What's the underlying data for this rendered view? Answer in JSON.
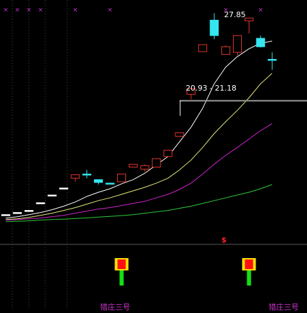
{
  "colors": {
    "background": "#000000",
    "up_candle": "#e0362e",
    "down_candle": "#35e5f0",
    "doji": "#ffffff",
    "ma_white": "#ffffff",
    "ma_yellow": "#e8e87a",
    "ma_magenta": "#d024d0",
    "ma_green": "#2ecc3a",
    "grid": "#4a4a4a",
    "marker_x": "#cc33cc",
    "signal_label": "#cc33cc",
    "signal_red": "#ff1010",
    "signal_yellow": "#ffe100",
    "signal_green": "#12e012"
  },
  "annotations": {
    "high_label": "27.85",
    "range_label": "20.93 - 21.18",
    "dollar_mark": "$"
  },
  "signals": {
    "label_1": "猎庄三号",
    "label_2": "猎庄三号"
  },
  "chart_data": {
    "type": "candlestick",
    "candles": [
      {
        "open": 13.45,
        "close": 13.45,
        "high": 13.45,
        "low": 13.45
      },
      {
        "open": 13.6,
        "close": 13.6,
        "high": 13.6,
        "low": 13.6
      },
      {
        "open": 13.75,
        "close": 13.75,
        "high": 13.75,
        "low": 13.75
      },
      {
        "open": 14.3,
        "close": 14.3,
        "high": 14.3,
        "low": 14.3
      },
      {
        "open": 14.85,
        "close": 14.85,
        "high": 14.85,
        "low": 14.85
      },
      {
        "open": 15.35,
        "close": 15.35,
        "high": 15.35,
        "low": 15.35
      },
      {
        "open": 16.05,
        "close": 16.3,
        "high": 16.3,
        "low": 15.8
      },
      {
        "open": 16.35,
        "close": 16.35,
        "high": 16.65,
        "low": 16.05
      },
      {
        "open": 15.95,
        "close": 15.75,
        "high": 15.95,
        "low": 15.6
      },
      {
        "open": 15.7,
        "close": 15.7,
        "high": 15.7,
        "low": 15.7
      },
      {
        "open": 15.8,
        "close": 16.35,
        "high": 16.35,
        "low": 15.8
      },
      {
        "open": 16.85,
        "close": 17.05,
        "high": 17.05,
        "low": 16.85
      },
      {
        "open": 16.7,
        "close": 16.95,
        "high": 17.05,
        "low": 16.5
      },
      {
        "open": 16.85,
        "close": 17.45,
        "high": 17.45,
        "low": 16.85
      },
      {
        "open": 17.6,
        "close": 18.05,
        "high": 18.05,
        "low": 17.6
      },
      {
        "open": 19.05,
        "close": 19.3,
        "high": 19.3,
        "low": 19.05
      },
      {
        "open": 22.05,
        "close": 22.45,
        "high": 22.45,
        "low": 21.7
      },
      {
        "open": 25.1,
        "close": 25.6,
        "high": 25.6,
        "low": 25.1
      },
      {
        "open": 27.35,
        "close": 26.25,
        "high": 27.85,
        "low": 26.0
      },
      {
        "open": 24.9,
        "close": 25.45,
        "high": 25.55,
        "low": 24.9
      },
      {
        "open": 25.05,
        "close": 26.25,
        "high": 26.25,
        "low": 24.85
      },
      {
        "open": 27.3,
        "close": 27.5,
        "high": 27.5,
        "low": 26.4
      },
      {
        "open": 26.05,
        "close": 25.45,
        "high": 26.25,
        "low": 25.4
      },
      {
        "open": 24.55,
        "close": 24.55,
        "high": 25.05,
        "low": 23.8
      }
    ],
    "moving_averages": [
      {
        "color": "white",
        "values": [
          13.2,
          13.3,
          13.45,
          13.6,
          13.8,
          14.05,
          14.35,
          14.75,
          15.05,
          15.3,
          15.65,
          15.95,
          16.4,
          17.0,
          17.6,
          18.65,
          19.7,
          21.05,
          22.8,
          24.0,
          24.75,
          25.3,
          25.7,
          25.85
        ]
      },
      {
        "color": "yellow",
        "values": [
          13.1,
          13.15,
          13.25,
          13.4,
          13.55,
          13.75,
          13.95,
          14.2,
          14.45,
          14.65,
          14.9,
          15.15,
          15.4,
          15.7,
          16.05,
          16.65,
          17.35,
          18.25,
          19.25,
          20.1,
          20.9,
          21.8,
          22.8,
          23.55
        ]
      },
      {
        "color": "magenta",
        "values": [
          13.05,
          13.1,
          13.15,
          13.2,
          13.3,
          13.4,
          13.55,
          13.7,
          13.85,
          13.95,
          14.1,
          14.25,
          14.4,
          14.65,
          14.9,
          15.25,
          15.7,
          16.35,
          17.05,
          17.7,
          18.25,
          18.85,
          19.45,
          19.95
        ]
      },
      {
        "color": "green",
        "values": [
          12.95,
          12.98,
          13.0,
          13.05,
          13.1,
          13.13,
          13.17,
          13.22,
          13.27,
          13.32,
          13.38,
          13.45,
          13.55,
          13.65,
          13.75,
          13.9,
          14.05,
          14.25,
          14.45,
          14.65,
          14.85,
          15.05,
          15.3,
          15.6
        ]
      }
    ],
    "reference_lines": [
      {
        "label": "20.93 - 21.18",
        "value": 21.05
      }
    ],
    "price_annotations": [
      {
        "label": "27.85",
        "value": 27.85,
        "candle_index": 18
      }
    ],
    "x_markers": [
      0,
      1,
      2,
      3,
      6,
      9,
      19,
      22
    ],
    "signal_candles": [
      10,
      21
    ],
    "signal_labels": [
      "猎庄三号",
      "猎庄三号"
    ],
    "ylim": [
      12.6,
      28.3
    ]
  }
}
